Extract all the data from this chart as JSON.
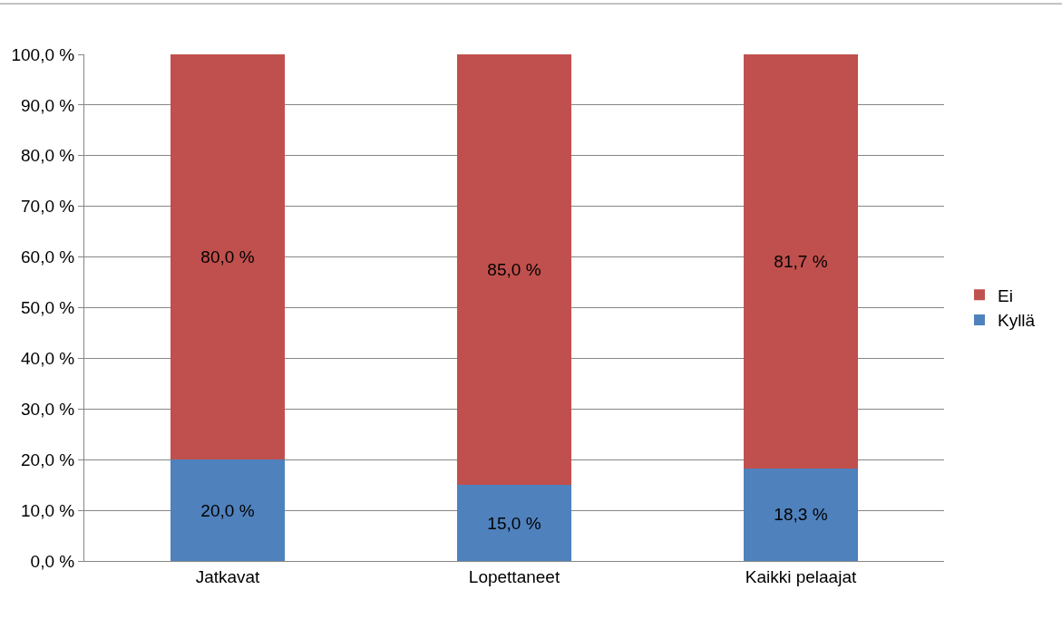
{
  "chart_data": {
    "type": "bar",
    "stacked": true,
    "categories": [
      "Jatkavat",
      "Lopettaneet",
      "Kaikki pelaajat"
    ],
    "series": [
      {
        "name": "Kyllä",
        "color": "#4f81bd",
        "values": [
          20.0,
          15.0,
          18.3
        ],
        "value_labels": [
          "20,0 %",
          "15,0 %",
          "18,3 %"
        ]
      },
      {
        "name": "Ei",
        "color": "#c0504d",
        "values": [
          80.0,
          85.0,
          81.7
        ],
        "value_labels": [
          "80,0 %",
          "85,0 %",
          "81,7 %"
        ]
      }
    ],
    "ylim": [
      0,
      100
    ],
    "yticks": [
      {
        "value": 0,
        "label": "0,0 %"
      },
      {
        "value": 10,
        "label": "10,0 %"
      },
      {
        "value": 20,
        "label": "20,0 %"
      },
      {
        "value": 30,
        "label": "30,0 %"
      },
      {
        "value": 40,
        "label": "40,0 %"
      },
      {
        "value": 50,
        "label": "50,0 %"
      },
      {
        "value": 60,
        "label": "60,0 %"
      },
      {
        "value": 70,
        "label": "70,0 %"
      },
      {
        "value": 80,
        "label": "80,0 %"
      },
      {
        "value": 90,
        "label": "90,0 %"
      },
      {
        "value": 100,
        "label": "100,0 %"
      }
    ],
    "grid": "y",
    "legend": "right"
  }
}
